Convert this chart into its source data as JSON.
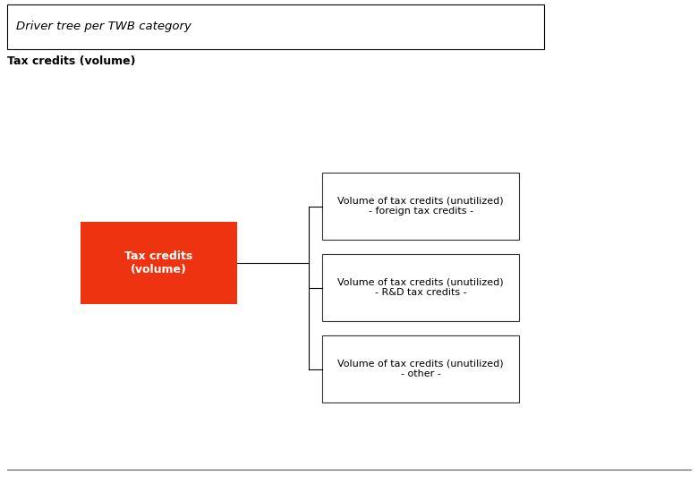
{
  "background_color": "#ffffff",
  "header_text": "Driver tree per TWB category",
  "subtitle_text": "Tax credits (volume)",
  "root_label": "Tax credits\n(volume)",
  "root_label_color": "#ffffff",
  "root_facecolor": "#ee3311",
  "child_labels": [
    "Volume of tax credits (unutilized)\n- foreign tax credits -",
    "Volume of tax credits (unutilized)\n- R&D tax credits -",
    "Volume of tax credits (unutilized)\n- other -"
  ],
  "child_box_facecolor": "#ffffff",
  "child_box_edgecolor": "#333333",
  "child_label_color": "#000000",
  "line_color": "#000000",
  "line_width": 0.8
}
